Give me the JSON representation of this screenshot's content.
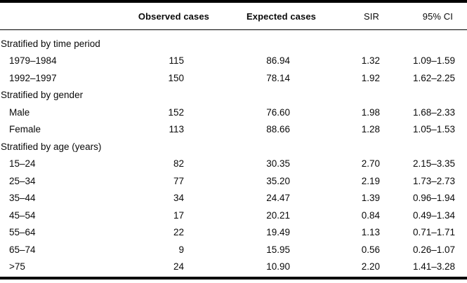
{
  "table": {
    "columns": [
      "",
      "Observed cases",
      "Expected cases",
      "SIR",
      "95% CI"
    ],
    "sections": [
      {
        "label": "Stratified by time period",
        "rows": [
          {
            "label": "1979–1984",
            "observed": "115",
            "expected": "86.94",
            "sir": "1.32",
            "ci": "1.09–1.59"
          },
          {
            "label": "1992–1997",
            "observed": "150",
            "expected": "78.14",
            "sir": "1.92",
            "ci": "1.62–2.25"
          }
        ]
      },
      {
        "label": "Stratified by gender",
        "rows": [
          {
            "label": "Male",
            "observed": "152",
            "expected": "76.60",
            "sir": "1.98",
            "ci": "1.68–2.33"
          },
          {
            "label": "Female",
            "observed": "113",
            "expected": "88.66",
            "sir": "1.28",
            "ci": "1.05–1.53"
          }
        ]
      },
      {
        "label": "Stratified by age (years)",
        "rows": [
          {
            "label": "15–24",
            "observed": "82",
            "expected": "30.35",
            "sir": "2.70",
            "ci": "2.15–3.35"
          },
          {
            "label": "25–34",
            "observed": "77",
            "expected": "35.20",
            "sir": "2.19",
            "ci": "1.73–2.73"
          },
          {
            "label": "35–44",
            "observed": "34",
            "expected": "24.47",
            "sir": "1.39",
            "ci": "0.96–1.94"
          },
          {
            "label": "45–54",
            "observed": "17",
            "expected": "20.21",
            "sir": "0.84",
            "ci": "0.49–1.34"
          },
          {
            "label": "55–64",
            "observed": "22",
            "expected": "19.49",
            "sir": "1.13",
            "ci": "0.71–1.71"
          },
          {
            "label": "65–74",
            "observed": "9",
            "expected": "15.95",
            "sir": "0.56",
            "ci": "0.26–1.07"
          },
          {
            "label": ">75",
            "observed": "24",
            "expected": "10.90",
            "sir": "2.20",
            "ci": "1.41–3.28"
          }
        ]
      }
    ],
    "colors": {
      "text": "#0a0a0a",
      "rule": "#000000",
      "background": "#ffffff"
    }
  }
}
